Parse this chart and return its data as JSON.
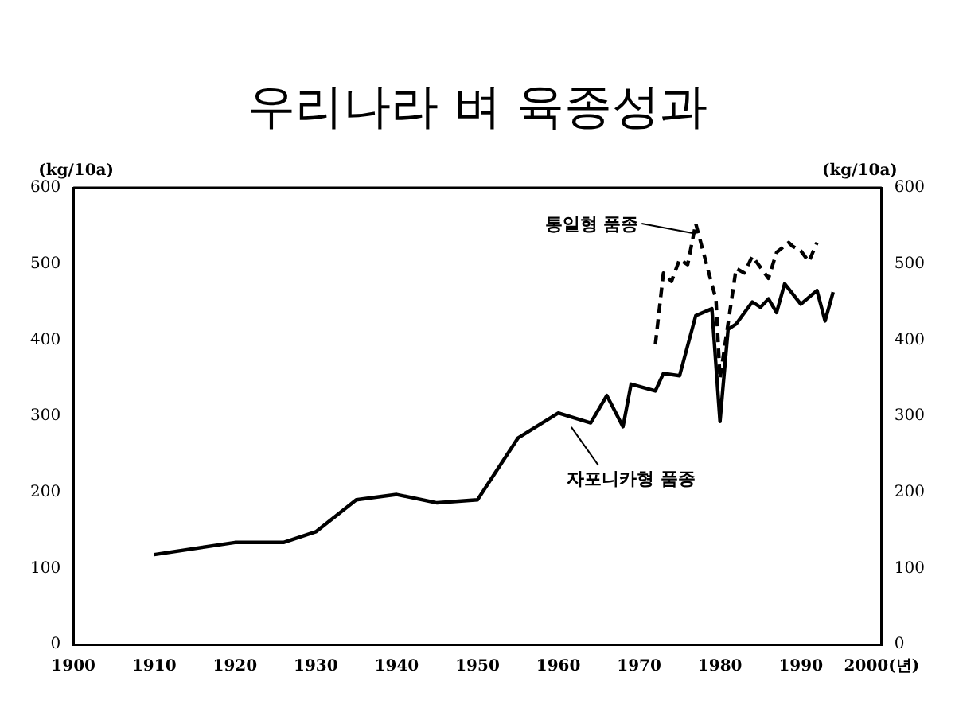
{
  "chart_data": {
    "type": "line",
    "title": "우리나라 벼 육종성과",
    "ylabel": "(kg/10a)",
    "y2label": "(kg/10a)",
    "xlim": [
      1900,
      2000
    ],
    "xticks": [
      1900,
      1910,
      1920,
      1930,
      1940,
      1950,
      1960,
      1970,
      1980,
      1990,
      {
        "value": 2000,
        "label": "2000(년)"
      }
    ],
    "ylim": [
      0,
      600
    ],
    "yticks": [
      0,
      100,
      200,
      300,
      400,
      500,
      600
    ],
    "y2lim": [
      0,
      600
    ],
    "y2ticks": [
      0,
      100,
      200,
      300,
      400,
      500,
      600
    ],
    "grid": false,
    "legend": false,
    "marker": "none",
    "series": [
      {
        "color": "#000000",
        "line_style": "solid",
        "x": [
          1910,
          1920,
          1926,
          1930,
          1935,
          1940,
          1945,
          1950,
          1955,
          1960,
          1964,
          1966,
          1968,
          1969,
          1972,
          1973,
          1975,
          1977,
          1979,
          1980,
          1981,
          1982,
          1984,
          1985,
          1986,
          1987,
          1988,
          1990,
          1992,
          1993,
          1994
        ],
        "values": [
          118,
          134,
          134,
          148,
          190,
          197,
          186,
          190,
          271,
          304,
          291,
          327,
          286,
          342,
          333,
          356,
          353,
          432,
          441,
          293,
          414,
          421,
          450,
          443,
          454,
          436,
          474,
          447,
          465,
          425,
          463
        ]
      },
      {
        "color": "#000000",
        "line_style": "dashed",
        "x": [
          1972,
          1973,
          1974,
          1975,
          1976,
          1977,
          1979,
          1979.5,
          1980,
          1982,
          1983,
          1984,
          1986,
          1987,
          1988.5,
          1989,
          1990,
          1991,
          1992
        ],
        "values": [
          394,
          488,
          477,
          506,
          499,
          553,
          473,
          454,
          349,
          494,
          488,
          510,
          481,
          515,
          528,
          523,
          517,
          503,
          528
        ]
      }
    ],
    "annotations": [
      {
        "text": "통일형 품종",
        "x": 1977,
        "y": 553
      },
      {
        "text": "자포니카형 품종",
        "x": 1962,
        "y": 298
      }
    ]
  }
}
